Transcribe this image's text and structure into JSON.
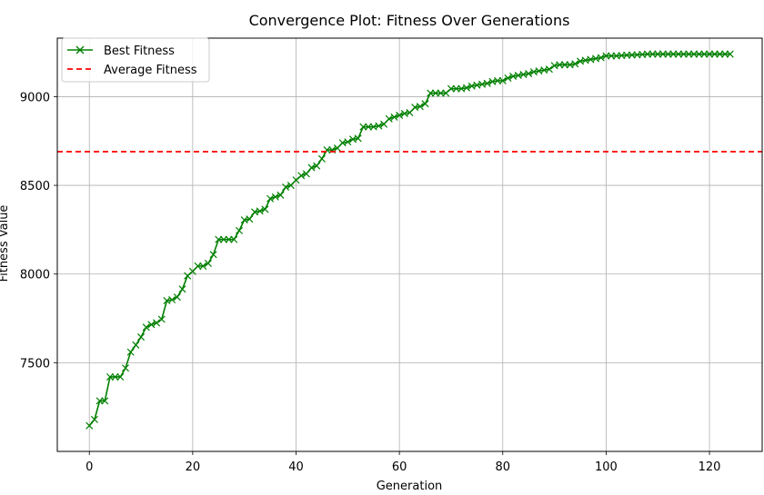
{
  "chart_data": {
    "type": "line",
    "title": "Convergence Plot: Fitness Over Generations",
    "xlabel": "Generation",
    "ylabel": "Fitness Value",
    "xlim": [
      -6.2,
      130.2
    ],
    "ylim": [
      7000,
      9330
    ],
    "xticks": [
      0,
      20,
      40,
      60,
      80,
      100,
      120
    ],
    "yticks": [
      7500,
      8000,
      8500,
      9000
    ],
    "grid": true,
    "legend_position": "top-left",
    "series": [
      {
        "name": "Best Fitness",
        "style": "line-x-marker",
        "color": "#008000",
        "x": [
          0,
          1,
          2,
          3,
          4,
          5,
          6,
          7,
          8,
          9,
          10,
          11,
          12,
          13,
          14,
          15,
          16,
          17,
          18,
          19,
          20,
          21,
          22,
          23,
          24,
          25,
          26,
          27,
          28,
          29,
          30,
          31,
          32,
          33,
          34,
          35,
          36,
          37,
          38,
          39,
          40,
          41,
          42,
          43,
          44,
          45,
          46,
          47,
          48,
          49,
          50,
          51,
          52,
          53,
          54,
          55,
          56,
          57,
          58,
          59,
          60,
          61,
          62,
          63,
          64,
          65,
          66,
          67,
          68,
          69,
          70,
          71,
          72,
          73,
          74,
          75,
          76,
          77,
          78,
          79,
          80,
          81,
          82,
          83,
          84,
          85,
          86,
          87,
          88,
          89,
          90,
          91,
          92,
          93,
          94,
          95,
          96,
          97,
          98,
          99,
          100,
          101,
          102,
          103,
          104,
          105,
          106,
          107,
          108,
          109,
          110,
          111,
          112,
          113,
          114,
          115,
          116,
          117,
          118,
          119,
          120,
          121,
          122,
          123,
          124
        ],
        "y": [
          7145,
          7180,
          7285,
          7285,
          7420,
          7420,
          7420,
          7470,
          7560,
          7600,
          7645,
          7700,
          7715,
          7725,
          7745,
          7850,
          7855,
          7870,
          7915,
          7990,
          8015,
          8045,
          8045,
          8060,
          8110,
          8195,
          8195,
          8195,
          8195,
          8245,
          8305,
          8310,
          8350,
          8355,
          8365,
          8425,
          8435,
          8445,
          8490,
          8500,
          8530,
          8555,
          8565,
          8600,
          8610,
          8650,
          8700,
          8700,
          8710,
          8740,
          8745,
          8760,
          8765,
          8830,
          8830,
          8830,
          8835,
          8845,
          8875,
          8885,
          8895,
          8905,
          8910,
          8940,
          8945,
          8960,
          9020,
          9020,
          9020,
          9020,
          9045,
          9045,
          9045,
          9050,
          9060,
          9065,
          9070,
          9075,
          9085,
          9090,
          9090,
          9105,
          9115,
          9120,
          9125,
          9130,
          9140,
          9145,
          9150,
          9155,
          9175,
          9180,
          9180,
          9180,
          9185,
          9200,
          9205,
          9210,
          9215,
          9220,
          9230,
          9230,
          9230,
          9232,
          9234,
          9235,
          9236,
          9238,
          9240,
          9240,
          9240,
          9240,
          9240,
          9240,
          9240,
          9240,
          9240,
          9240,
          9240,
          9240,
          9240,
          9240,
          9240,
          9240,
          9240
        ]
      },
      {
        "name": "Average Fitness",
        "style": "dashed-hline",
        "color": "#ff0000",
        "y": 8690
      }
    ]
  }
}
